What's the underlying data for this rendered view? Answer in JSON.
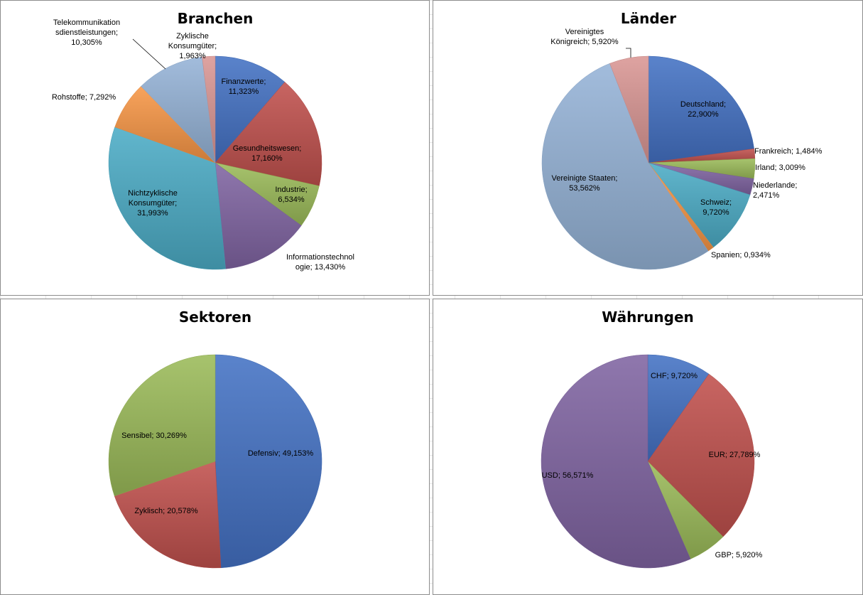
{
  "chart_data": [
    {
      "type": "pie",
      "title": "Branchen",
      "slices": [
        {
          "label": "Finanzwerte",
          "value": 11.323,
          "text": "Finanzwerte;\n11,323%",
          "color": "#4472c4"
        },
        {
          "label": "Gesundheitswesen",
          "value": 17.16,
          "text": "Gesundheitswesen;\n17,160%",
          "color": "#c0504d"
        },
        {
          "label": "Industrie",
          "value": 6.534,
          "text": "Industrie;\n6,534%",
          "color": "#9bbb59"
        },
        {
          "label": "Informationstechnologie",
          "value": 13.43,
          "text": "Informationstechnol\nogie; 13,430%",
          "color": "#8064a2"
        },
        {
          "label": "Nichtzyklische Konsumgüter",
          "value": 31.993,
          "text": "Nichtzyklische\nKonsumgüter;\n31,993%",
          "color": "#4bacc6"
        },
        {
          "label": "Rohstoffe",
          "value": 7.292,
          "text": "Rohstoffe; 7,292%",
          "color": "#f79646"
        },
        {
          "label": "Telekommunikationsdienstleistungen",
          "value": 10.305,
          "text": "Telekommunikation\nsdienstleistungen;\n10,305%",
          "color": "#95b3d7"
        },
        {
          "label": "Zyklische Konsumgüter",
          "value": 1.963,
          "text": "Zyklische\nKonsumgüter;\n1,963%",
          "color": "#d99694"
        }
      ]
    },
    {
      "type": "pie",
      "title": "Länder",
      "slices": [
        {
          "label": "Deutschland",
          "value": 22.9,
          "text": "Deutschland;\n22,900%",
          "color": "#4472c4"
        },
        {
          "label": "Frankreich",
          "value": 1.484,
          "text": "Frankreich; 1,484%",
          "color": "#c0504d"
        },
        {
          "label": "Irland",
          "value": 3.009,
          "text": "Irland; 3,009%",
          "color": "#9bbb59"
        },
        {
          "label": "Niederlande",
          "value": 2.471,
          "text": "Niederlande;\n2,471%",
          "color": "#8064a2"
        },
        {
          "label": "Schweiz",
          "value": 9.72,
          "text": "Schweiz;\n9,720%",
          "color": "#4bacc6"
        },
        {
          "label": "Spanien",
          "value": 0.934,
          "text": "Spanien; 0,934%",
          "color": "#f79646"
        },
        {
          "label": "Vereinigte Staaten",
          "value": 53.562,
          "text": "Vereinigte Staaten;\n53,562%",
          "color": "#95b3d7"
        },
        {
          "label": "Vereinigtes Königreich",
          "value": 5.92,
          "text": "Vereinigtes\nKönigreich; 5,920%",
          "color": "#d99694"
        }
      ]
    },
    {
      "type": "pie",
      "title": "Sektoren",
      "slices": [
        {
          "label": "Defensiv",
          "value": 49.153,
          "text": "Defensiv; 49,153%",
          "color": "#4472c4"
        },
        {
          "label": "Zyklisch",
          "value": 20.578,
          "text": "Zyklisch; 20,578%",
          "color": "#c0504d"
        },
        {
          "label": "Sensibel",
          "value": 30.269,
          "text": "Sensibel; 30,269%",
          "color": "#9bbb59"
        }
      ]
    },
    {
      "type": "pie",
      "title": "Währungen",
      "slices": [
        {
          "label": "CHF",
          "value": 9.72,
          "text": "CHF; 9,720%",
          "color": "#4472c4"
        },
        {
          "label": "EUR",
          "value": 27.789,
          "text": "EUR; 27,789%",
          "color": "#c0504d"
        },
        {
          "label": "GBP",
          "value": 5.92,
          "text": "GBP; 5,920%",
          "color": "#9bbb59"
        },
        {
          "label": "USD",
          "value": 56.571,
          "text": "USD; 56,571%",
          "color": "#8064a2"
        }
      ]
    }
  ]
}
